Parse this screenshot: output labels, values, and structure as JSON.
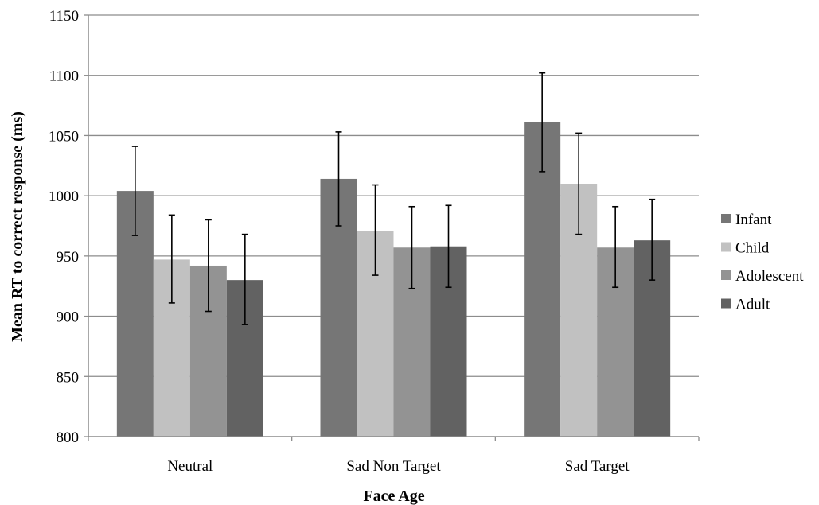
{
  "chart_data": {
    "type": "bar",
    "title": "",
    "xlabel": "Face Age",
    "ylabel": "Mean RT to correct response (ms)",
    "ylim": [
      800,
      1150
    ],
    "yticks": [
      "800",
      "850",
      "900",
      "950",
      "1000",
      "1050",
      "1100",
      "1150"
    ],
    "categories": [
      "Neutral",
      "Sad Non Target",
      "Sad Target"
    ],
    "grid": true,
    "legend_position": "right",
    "series": [
      {
        "name": "Infant",
        "color": "#767676",
        "values": [
          1004,
          1014,
          1061
        ],
        "error_low": [
          967,
          975,
          1020
        ],
        "error_high": [
          1041,
          1053,
          1102
        ]
      },
      {
        "name": "Child",
        "color": "#c1c1c1",
        "values": [
          947,
          971,
          1010
        ],
        "error_low": [
          911,
          934,
          968
        ],
        "error_high": [
          984,
          1009,
          1052
        ]
      },
      {
        "name": "Adolescent",
        "color": "#939393",
        "values": [
          942,
          957,
          957
        ],
        "error_low": [
          904,
          923,
          924
        ],
        "error_high": [
          980,
          991,
          991
        ]
      },
      {
        "name": "Adult",
        "color": "#626262",
        "values": [
          930,
          958,
          963
        ],
        "error_low": [
          893,
          924,
          930
        ],
        "error_high": [
          968,
          992,
          997
        ]
      }
    ]
  }
}
